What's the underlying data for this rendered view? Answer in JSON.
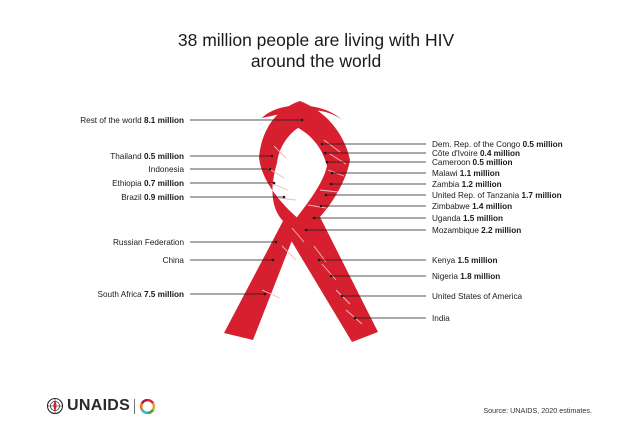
{
  "title_lines": [
    "38 million people are living with HIV",
    "around the world"
  ],
  "source": "Source: UNAIDS, 2020 estimates.",
  "logo": {
    "text": "UNAIDS",
    "icons": [
      "un-emblem-icon",
      "sdg-wheel-icon"
    ]
  },
  "colors": {
    "ribbon": "#d7202f",
    "ribbon_stripe": "#f3b8bd",
    "leader": "#1a1a1a",
    "text": "#1a1a1a"
  },
  "chart_data": {
    "type": "table",
    "unit": "million",
    "left": [
      {
        "region": "Rest of the world",
        "value": "8.1 million"
      },
      {
        "region": "Thailand",
        "value": "0.5 million"
      },
      {
        "region": "Indonesia",
        "value": ""
      },
      {
        "region": "Ethiopia",
        "value": "0.7 million"
      },
      {
        "region": "Brazil",
        "value": "0.9 million"
      },
      {
        "region": "Russian Federation",
        "value": ""
      },
      {
        "region": "China",
        "value": ""
      },
      {
        "region": "South Africa",
        "value": "7.5 million"
      }
    ],
    "right": [
      {
        "region": "Dem. Rep. of the Congo",
        "value": "0.5 million"
      },
      {
        "region": "Côte d'Ivoire",
        "value": "0.4 million"
      },
      {
        "region": "Cameroon",
        "value": "0.5 million"
      },
      {
        "region": "Malawi",
        "value": "1.1 million"
      },
      {
        "region": "Zambia",
        "value": "1.2 million"
      },
      {
        "region": "United Rep. of Tanzania",
        "value": "1.7 million"
      },
      {
        "region": "Zimbabwe",
        "value": "1.4 million"
      },
      {
        "region": "Uganda",
        "value": "1.5 million"
      },
      {
        "region": "Mozambique",
        "value": "2.2 million"
      },
      {
        "region": "Kenya",
        "value": "1.5 million"
      },
      {
        "region": "Nigeria",
        "value": "1.8 million"
      },
      {
        "region": "United States of America",
        "value": ""
      },
      {
        "region": "India",
        "value": ""
      }
    ]
  }
}
